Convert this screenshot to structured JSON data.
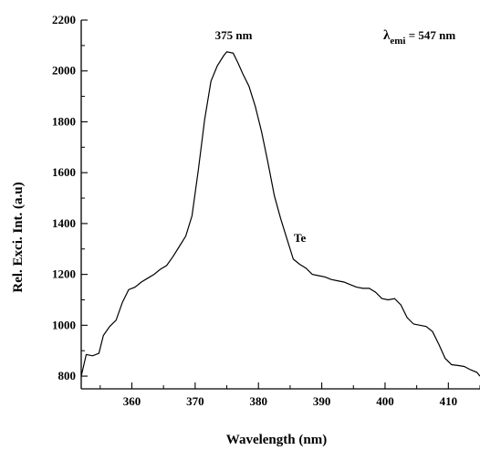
{
  "chart_data": {
    "type": "line",
    "title": "",
    "xlabel": "Wavelength (nm)",
    "ylabel": "Rel. Exci.  Int. (a.u)",
    "xlim": [
      352,
      415
    ],
    "ylim": [
      750,
      2200
    ],
    "xticks": [
      360,
      370,
      380,
      390,
      400,
      410
    ],
    "yticks": [
      800,
      1000,
      1200,
      1400,
      1600,
      1800,
      2000,
      2200
    ],
    "grid": false,
    "series": [
      {
        "name": "Te",
        "color": "#000000",
        "x": [
          352,
          352.8,
          353.8,
          354.8,
          355.5,
          356.5,
          357.5,
          358.5,
          359.5,
          360.5,
          361.5,
          362.5,
          363.5,
          364.5,
          365.5,
          366.5,
          367.5,
          368.5,
          369.5,
          370.5,
          371.5,
          372.5,
          373.5,
          374.5,
          375,
          376,
          376.8,
          377.5,
          378.5,
          379.5,
          380.5,
          381.5,
          382.5,
          383.5,
          384.5,
          385.5,
          386.5,
          387.5,
          388.5,
          389.5,
          390.5,
          391.5,
          392.5,
          393.5,
          394.5,
          395.5,
          396.5,
          397.5,
          398.5,
          399.5,
          400.5,
          401.5,
          402.5,
          403.5,
          404.5,
          405.5,
          406.5,
          407.5,
          408.5,
          409.5,
          410.5,
          411.5,
          412.5,
          413.5,
          414.5,
          415
        ],
        "y": [
          800,
          885,
          880,
          890,
          960,
          995,
          1020,
          1090,
          1140,
          1150,
          1170,
          1185,
          1200,
          1220,
          1235,
          1270,
          1310,
          1350,
          1430,
          1610,
          1810,
          1960,
          2020,
          2060,
          2075,
          2070,
          2030,
          1990,
          1940,
          1860,
          1760,
          1640,
          1510,
          1420,
          1340,
          1260,
          1240,
          1225,
          1200,
          1195,
          1190,
          1180,
          1175,
          1170,
          1160,
          1150,
          1145,
          1145,
          1130,
          1105,
          1100,
          1105,
          1080,
          1030,
          1005,
          1000,
          995,
          975,
          925,
          870,
          845,
          842,
          838,
          825,
          815,
          800
        ]
      }
    ],
    "annotations": [
      {
        "text": "375 nm"
      },
      {
        "text_lambda": "λ",
        "text_sub": "emi",
        "text_rest": " = 547 nm"
      },
      {
        "text": "Te"
      }
    ]
  }
}
